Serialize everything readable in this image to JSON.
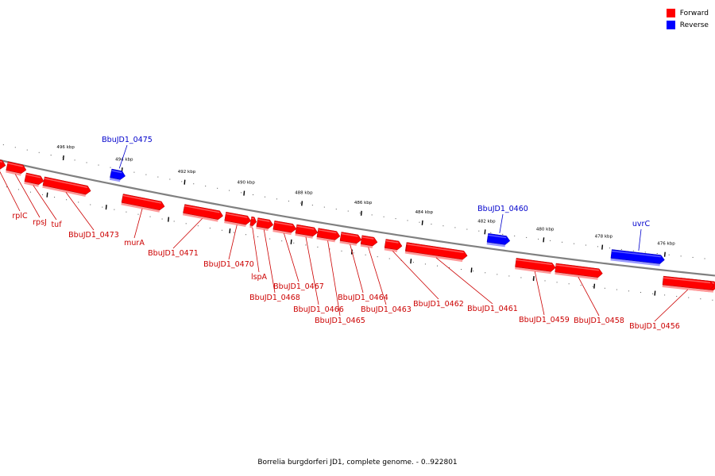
{
  "legend": {
    "forward_label": "Forward",
    "reverse_label": "Reverse",
    "forward_color": "#ff0000",
    "reverse_color": "#0000ff"
  },
  "caption": "Borrelia burgdorferi JD1, complete genome. - 0..922801",
  "colors": {
    "forward": "#ff0000",
    "reverse": "#0000ff",
    "forward_label": "#cc0000",
    "reverse_label": "#0000cc",
    "backbone": "#808080"
  },
  "scale": {
    "unit": "kbp",
    "tick_labels": [
      "496 kbp",
      "494 kbp",
      "492 kbp",
      "490 kbp",
      "488 kbp",
      "486 kbp",
      "484 kbp",
      "482 kbp",
      "480 kbp",
      "478 kbp",
      "476 kbp"
    ]
  },
  "genes": [
    {
      "label": "rplC",
      "strand": "forward"
    },
    {
      "label": "rpsJ",
      "strand": "forward"
    },
    {
      "label": "tuf",
      "strand": "forward"
    },
    {
      "label": "BbuJD1_0475",
      "strand": "reverse"
    },
    {
      "label": "BbuJD1_0473",
      "strand": "forward"
    },
    {
      "label": "murA",
      "strand": "forward"
    },
    {
      "label": "BbuJD1_0471",
      "strand": "forward"
    },
    {
      "label": "BbuJD1_0470",
      "strand": "forward"
    },
    {
      "label": "lspA",
      "strand": "forward"
    },
    {
      "label": "BbuJD1_0468",
      "strand": "forward"
    },
    {
      "label": "BbuJD1_0467",
      "strand": "forward"
    },
    {
      "label": "BbuJD1_0466",
      "strand": "forward"
    },
    {
      "label": "BbuJD1_0465",
      "strand": "forward"
    },
    {
      "label": "BbuJD1_0464",
      "strand": "forward"
    },
    {
      "label": "BbuJD1_0463",
      "strand": "forward"
    },
    {
      "label": "BbuJD1_0462",
      "strand": "forward"
    },
    {
      "label": "BbuJD1_0461",
      "strand": "forward"
    },
    {
      "label": "BbuJD1_0460",
      "strand": "reverse"
    },
    {
      "label": "BbuJD1_0459",
      "strand": "forward"
    },
    {
      "label": "BbuJD1_0458",
      "strand": "forward"
    },
    {
      "label": "uvrC",
      "strand": "reverse"
    },
    {
      "label": "BbuJD1_0456",
      "strand": "forward"
    }
  ]
}
